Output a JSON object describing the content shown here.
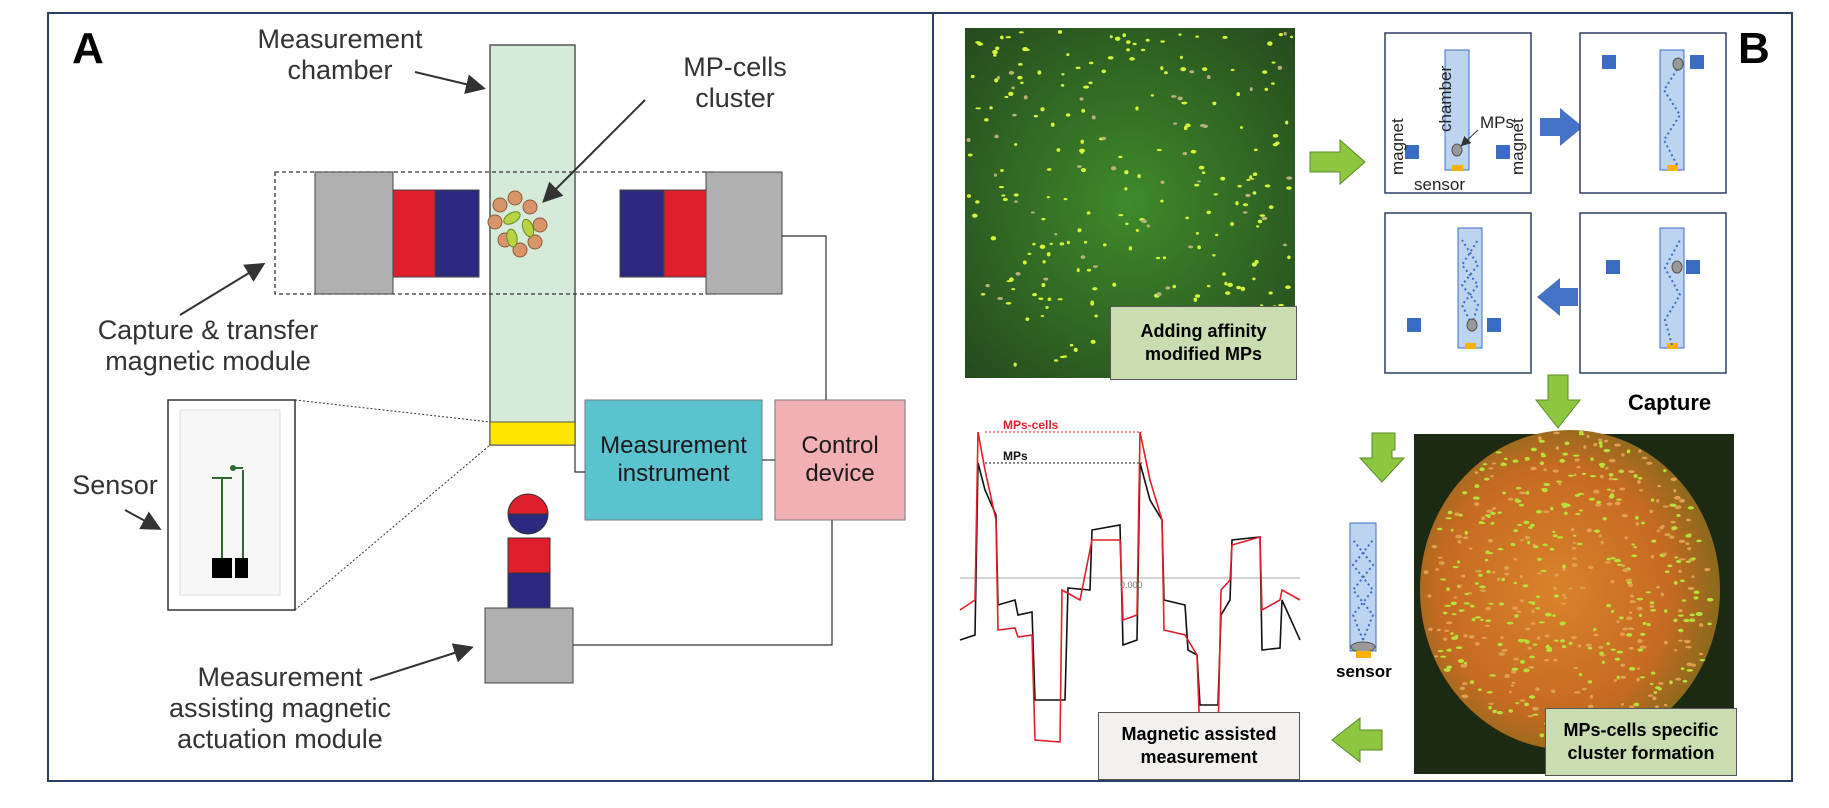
{
  "panel_a": {
    "letter": "A",
    "measurement_chamber": "Measurement chamber",
    "mp_cells_cluster": "MP-cells cluster",
    "capture_transfer_module": "Capture & transfer magnetic module",
    "sensor": "Sensor",
    "measurement_instrument": "Measurement instrument",
    "control_device": "Control device",
    "assisting_module": "Measurement assisting magnetic actuation module"
  },
  "panel_b": {
    "letter": "B",
    "adding_mps": "Adding affinity modified MPs",
    "magnet_left": "magnet",
    "chamber": "chamber",
    "mps": "MPs",
    "magnet_right": "magnet",
    "sensor_label": "sensor",
    "capture": "Capture",
    "cluster_formation": "MPs-cells specific cluster formation",
    "sensor_bottom": "sensor",
    "magnetic_measurement": "Magnetic assisted measurement",
    "graph_mps_cells": "MPs-cells",
    "graph_mps": "MPs",
    "graph_axis_value": "0.000"
  },
  "colors": {
    "magnet_red": "#e01f2d",
    "magnet_blue": "#2b2a7e",
    "chamber_green": "#d6ead9",
    "sensor_yellow": "#ffe600",
    "instrument_teal": "#5bc3cf",
    "control_pink": "#f2b0b4",
    "arrow_green": "#8dc63f",
    "arrow_blue": "#4472c4",
    "mini_blue": "#3b6cc4"
  }
}
